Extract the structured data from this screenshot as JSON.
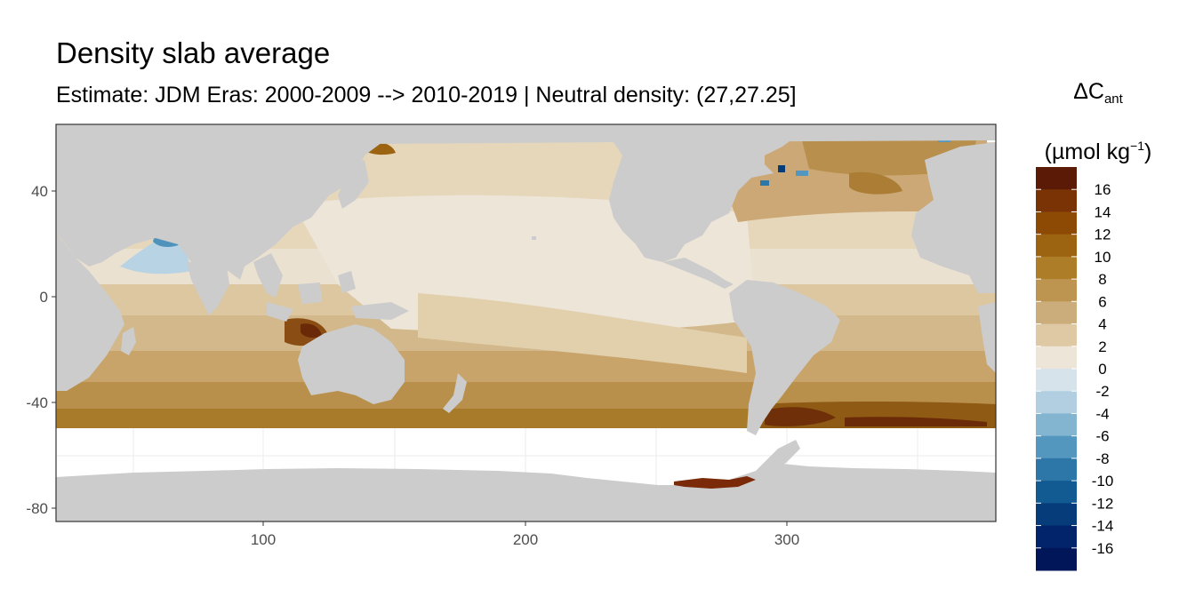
{
  "title": "Density slab average",
  "subtitle": "Estimate: JDM Eras: 2000-2009 --> 2010-2019 | Neutral density: (27,27.25]",
  "legend": {
    "symbol": "ΔC",
    "symbol_sub": "ant",
    "unit_prefix": "(µmol kg",
    "unit_sup": "−1",
    "unit_suffix": ")",
    "labels": [
      "16",
      "14",
      "12",
      "10",
      "8",
      "6",
      "4",
      "2",
      "0",
      "-2",
      "-4",
      "-6",
      "-8",
      "-10",
      "-12",
      "-14",
      "-16"
    ],
    "colors": [
      "#5a1a05",
      "#7a3305",
      "#8c4a05",
      "#9c6410",
      "#ad7d28",
      "#bd9450",
      "#cbac7b",
      "#dec9a4",
      "#ece5d8",
      "#d7e3ea",
      "#b1cfe0",
      "#83b4d0",
      "#5396be",
      "#2d76a8",
      "#125a92",
      "#063c7a",
      "#02246a",
      "#001658"
    ]
  },
  "map": {
    "land_color": "#cccccc",
    "no_data_color": "#ffffff"
  },
  "chart_data": {
    "type": "heatmap",
    "x_ticks": [
      "100",
      "200",
      "300"
    ],
    "y_ticks": [
      "40",
      "0",
      "-40",
      "-80"
    ],
    "xlim": [
      20,
      380
    ],
    "ylim": [
      -85,
      65
    ],
    "grid": true
  }
}
